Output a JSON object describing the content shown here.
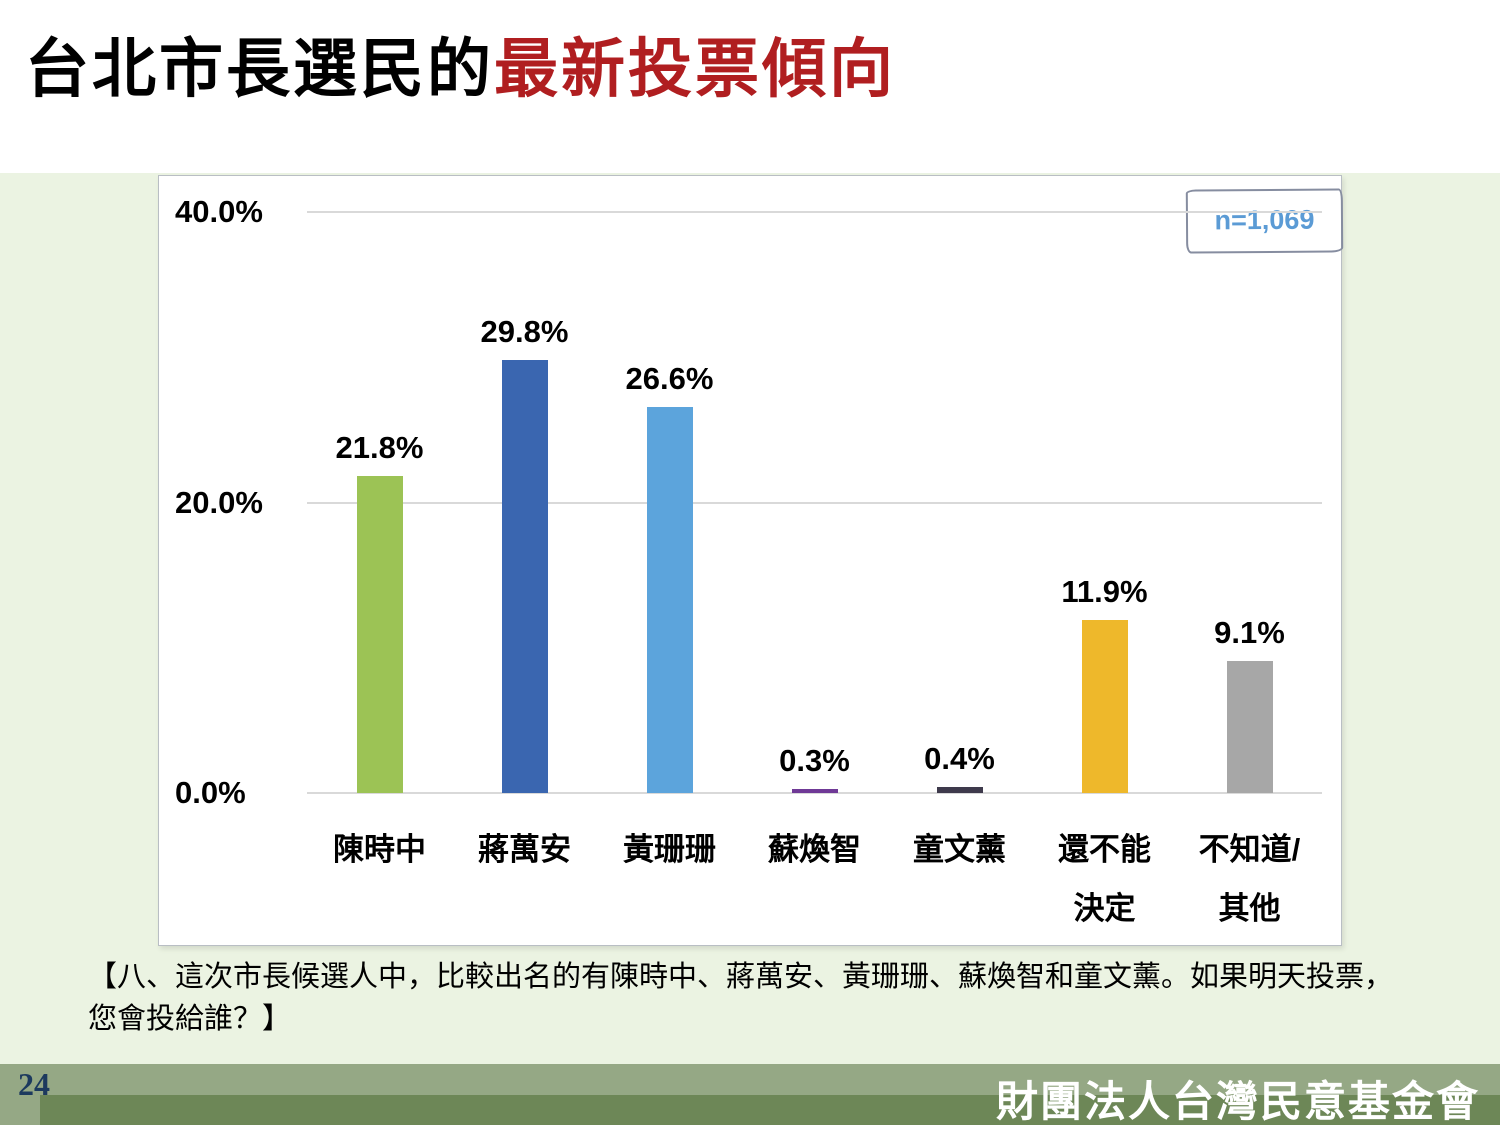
{
  "title": {
    "black": "台北市長選民的",
    "red": "最新投票傾向"
  },
  "chart_data": {
    "type": "bar",
    "title": "台北市長選民的最新投票傾向",
    "n_label": "n=1,069",
    "categories": [
      "陳時中",
      "蔣萬安",
      "黃珊珊",
      "蘇煥智",
      "童文薰",
      "還不能決定",
      "不知道/其他"
    ],
    "category_label_lines": [
      [
        "陳時中"
      ],
      [
        "蔣萬安"
      ],
      [
        "黃珊珊"
      ],
      [
        "蘇煥智"
      ],
      [
        "童文薰"
      ],
      [
        "還不能",
        "決定"
      ],
      [
        "不知道/",
        "其他"
      ]
    ],
    "values": [
      21.8,
      29.8,
      26.6,
      0.3,
      0.4,
      11.9,
      9.1
    ],
    "value_labels": [
      "21.8%",
      "29.8%",
      "26.6%",
      "0.3%",
      "0.4%",
      "11.9%",
      "9.1%"
    ],
    "bar_colors": [
      "#9CC355",
      "#3A66B0",
      "#5CA4DC",
      "#6F3996",
      "#3E3A4C",
      "#EEB82B",
      "#A7A7A7"
    ],
    "yticks": [
      {
        "label": "0.0%",
        "value": 0
      },
      {
        "label": "20.0%",
        "value": 20
      },
      {
        "label": "40.0%",
        "value": 40
      }
    ],
    "ylim": [
      0,
      40
    ],
    "grid": true,
    "legend": false,
    "xlabel": "",
    "ylabel": ""
  },
  "question": {
    "line1": "【八、這次市長候選人中，比較出名的有陳時中、蔣萬安、黃珊珊、蘇煥智和童文薰。如果明天投票，",
    "line2": "您會投給誰？】"
  },
  "footer": {
    "page_number": "24",
    "org_name": "財團法人台灣民意基金會"
  },
  "colors": {
    "title_red": "#B01E20",
    "n_blue": "#5B9BD5",
    "bg_green": "#EBF3E2",
    "gridline": "#D9D9D9",
    "footer_sage": "#95A885",
    "footer_dark": "#6D8757",
    "page_navy": "#1D3A5E"
  }
}
